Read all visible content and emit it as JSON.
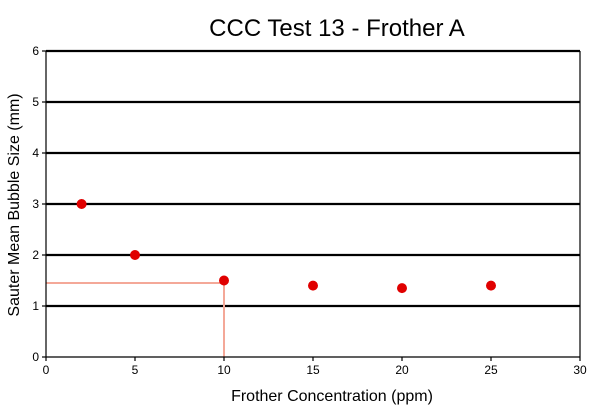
{
  "chart_data": {
    "type": "scatter",
    "title": "CCC Test 13 - Frother A",
    "xlabel": "Frother Concentration (ppm)",
    "ylabel": "Sauter Mean Bubble Size (mm)",
    "xlim": [
      0,
      30
    ],
    "ylim": [
      0,
      6
    ],
    "xticks": [
      "0",
      "5",
      "10",
      "15",
      "20",
      "25",
      "30"
    ],
    "yticks": [
      "0",
      "1",
      "2",
      "3",
      "4",
      "5",
      "6"
    ],
    "grid": "horizontal",
    "legend": "none",
    "series": [
      {
        "color": "#e00000",
        "points": [
          {
            "x": 2,
            "y": 3.0
          },
          {
            "x": 5,
            "y": 2.0
          },
          {
            "x": 10,
            "y": 1.5
          },
          {
            "x": 15,
            "y": 1.4
          },
          {
            "x": 20,
            "y": 1.35
          },
          {
            "x": 25,
            "y": 1.4
          }
        ]
      }
    ],
    "ccc_marker": {
      "x": 10,
      "y": 1.45,
      "color": "#f4a898"
    }
  }
}
